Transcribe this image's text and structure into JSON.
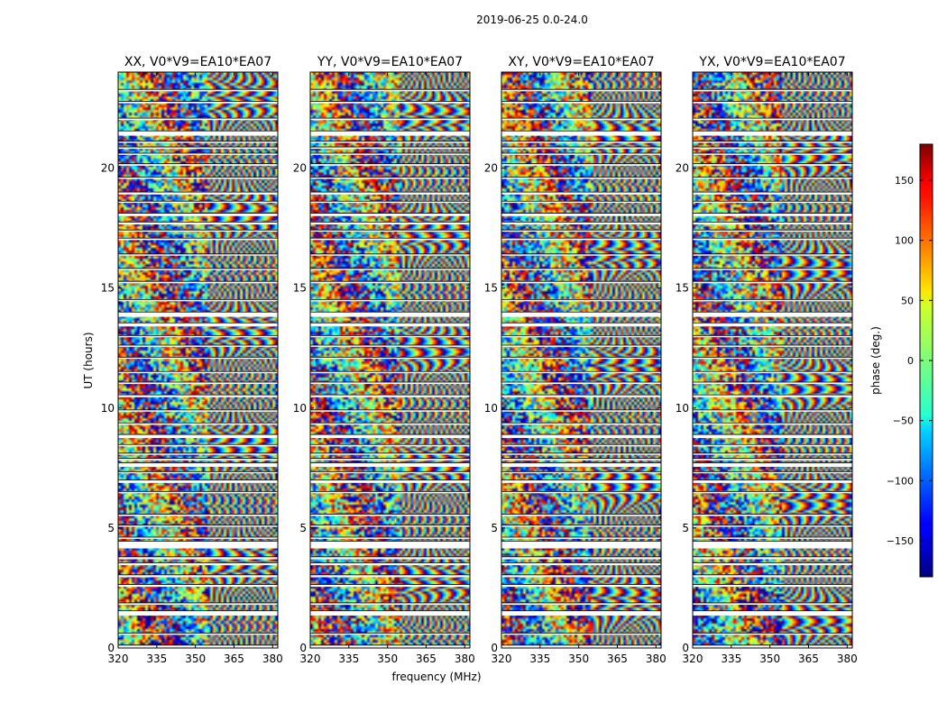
{
  "figure": {
    "suptitle": "2019-06-25 0.0-24.0"
  },
  "chart_data": {
    "type": "heatmap",
    "description_free": true,
    "panels": [
      {
        "title": "XX, V0*V9=EA10*EA07"
      },
      {
        "title": "YY, V0*V9=EA10*EA07"
      },
      {
        "title": "XY, V0*V9=EA10*EA07"
      },
      {
        "title": "YX, V0*V9=EA10*EA07"
      }
    ],
    "x": {
      "label": "frequency (MHz)",
      "range": [
        320,
        382
      ],
      "ticks": [
        320,
        335,
        350,
        365,
        380
      ],
      "tick_labels": [
        "320",
        "335",
        "350",
        "365",
        "380"
      ]
    },
    "y": {
      "label": "UT (hours)",
      "range": [
        0,
        24
      ],
      "ticks": [
        0,
        5,
        10,
        15,
        20
      ],
      "tick_labels": [
        "0",
        "5",
        "10",
        "15",
        "20"
      ]
    },
    "colorbar": {
      "label": "phase (deg.)",
      "range": [
        -180,
        180
      ],
      "colormap": "jet",
      "ticks": [
        -150,
        -100,
        -50,
        0,
        50,
        100,
        150
      ],
      "tick_labels": [
        "−150",
        "−100",
        "−50",
        "0",
        "50",
        "100",
        "150"
      ]
    },
    "flagged_hours": [
      [
        0.0,
        0.12
      ],
      [
        0.55,
        0.62
      ],
      [
        1.35,
        1.55
      ],
      [
        1.8,
        1.88
      ],
      [
        2.55,
        2.65
      ],
      [
        2.95,
        3.05
      ],
      [
        3.45,
        3.55
      ],
      [
        3.7,
        3.8
      ],
      [
        4.15,
        4.45
      ],
      [
        4.55,
        4.62
      ],
      [
        5.05,
        5.12
      ],
      [
        5.5,
        5.58
      ],
      [
        6.45,
        6.52
      ],
      [
        6.88,
        7.0
      ],
      [
        7.28,
        7.35
      ],
      [
        7.55,
        7.72
      ],
      [
        7.82,
        7.9
      ],
      [
        8.05,
        8.12
      ],
      [
        8.4,
        8.48
      ],
      [
        8.75,
        8.9
      ],
      [
        9.3,
        9.38
      ],
      [
        9.85,
        9.92
      ],
      [
        10.45,
        10.55
      ],
      [
        11.0,
        11.08
      ],
      [
        11.45,
        11.52
      ],
      [
        12.05,
        12.12
      ],
      [
        12.55,
        12.62
      ],
      [
        12.95,
        13.02
      ],
      [
        13.4,
        13.55
      ],
      [
        13.8,
        14.0
      ],
      [
        14.45,
        14.52
      ],
      [
        15.2,
        15.28
      ],
      [
        15.75,
        15.82
      ],
      [
        16.35,
        16.42
      ],
      [
        17.0,
        17.08
      ],
      [
        17.35,
        17.42
      ],
      [
        17.65,
        17.75
      ],
      [
        18.0,
        18.12
      ],
      [
        18.55,
        18.62
      ],
      [
        18.9,
        19.0
      ],
      [
        19.55,
        19.62
      ],
      [
        20.1,
        20.18
      ],
      [
        20.55,
        20.62
      ],
      [
        20.8,
        20.88
      ],
      [
        21.05,
        21.12
      ],
      [
        21.35,
        21.55
      ],
      [
        22.0,
        22.08
      ],
      [
        22.7,
        22.78
      ],
      [
        23.2,
        23.28
      ]
    ]
  }
}
